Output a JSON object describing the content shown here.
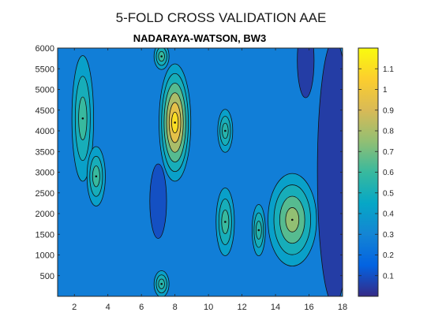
{
  "figure_title": "5-FOLD CROSS VALIDATION AAE",
  "chart_data": {
    "type": "heatmap",
    "subtype": "filled-contour",
    "title": "NADARAYA-WATSON, BW3",
    "xlabel": "",
    "ylabel": "",
    "xlim": [
      1,
      18
    ],
    "ylim": [
      0,
      6000
    ],
    "x_ticks": [
      2,
      4,
      6,
      8,
      10,
      12,
      14,
      16,
      18
    ],
    "y_ticks": [
      500,
      1000,
      1500,
      2000,
      2500,
      3000,
      3500,
      4000,
      4500,
      5000,
      5500,
      6000
    ],
    "colorbar": {
      "colormap": "parula",
      "range": [
        0.0,
        1.2
      ],
      "ticks": [
        0.1,
        0.2,
        0.3,
        0.4,
        0.5,
        0.6,
        0.7,
        0.8,
        0.9,
        1,
        1.1
      ],
      "tick_labels": [
        "0.1",
        "0.2",
        "0.3",
        "0.4",
        "0.5",
        "0.6",
        "0.7",
        "0.8",
        "0.9",
        "1",
        "1.1"
      ]
    },
    "contour_levels": [
      0.1,
      0.25,
      0.4,
      0.55,
      0.7,
      0.85,
      1.0
    ],
    "peaks": [
      {
        "x": 8,
        "y": 4200,
        "value": 1.1
      },
      {
        "x": 15,
        "y": 1850,
        "value": 0.75
      },
      {
        "x": 2.5,
        "y": 4300,
        "value": 0.6
      },
      {
        "x": 3.3,
        "y": 2900,
        "value": 0.6
      },
      {
        "x": 11,
        "y": 1800,
        "value": 0.6
      },
      {
        "x": 11,
        "y": 4000,
        "value": 0.55
      },
      {
        "x": 13,
        "y": 1600,
        "value": 0.55
      },
      {
        "x": 7.2,
        "y": 5800,
        "value": 0.6
      },
      {
        "x": 7.2,
        "y": 300,
        "value": 0.55
      }
    ],
    "low_regions": [
      {
        "x": 17.5,
        "y": 3000,
        "value": 0.05
      },
      {
        "x": 15.8,
        "y": 5700,
        "value": 0.05
      },
      {
        "x": 7.0,
        "y": 2300,
        "value": 0.1
      }
    ],
    "background_value": 0.32
  }
}
